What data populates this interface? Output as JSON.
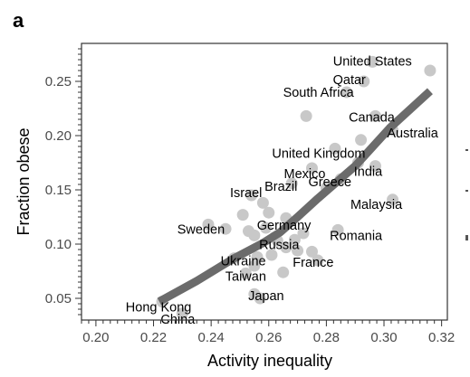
{
  "panel_letter": "a",
  "chart_data": {
    "type": "scatter",
    "xlabel": "Activity inequality",
    "ylabel": "Fraction obese",
    "xlim": [
      0.195,
      0.322
    ],
    "ylim": [
      0.03,
      0.285
    ],
    "xticks": [
      "0.20",
      "0.22",
      "0.24",
      "0.26",
      "0.28",
      "0.30",
      "0.32"
    ],
    "yticks": [
      "0.05",
      "0.10",
      "0.15",
      "0.20",
      "0.25"
    ],
    "grid": false,
    "point_color": "#c8c8c8",
    "trend_color": "#6b6b6b",
    "points": [
      {
        "x": 0.296,
        "y": 0.268,
        "label": "United States"
      },
      {
        "x": 0.316,
        "y": 0.26
      },
      {
        "x": 0.293,
        "y": 0.25,
        "label": "Qatar"
      },
      {
        "x": 0.287,
        "y": 0.24,
        "label": "South Africa"
      },
      {
        "x": 0.273,
        "y": 0.218
      },
      {
        "x": 0.297,
        "y": 0.218,
        "label": "Canada"
      },
      {
        "x": 0.303,
        "y": 0.205,
        "label": "Australia"
      },
      {
        "x": 0.292,
        "y": 0.196
      },
      {
        "x": 0.283,
        "y": 0.188,
        "label": "United Kingdom"
      },
      {
        "x": 0.291,
        "y": 0.175
      },
      {
        "x": 0.297,
        "y": 0.172,
        "label": "India"
      },
      {
        "x": 0.275,
        "y": 0.17,
        "label": "Mexico"
      },
      {
        "x": 0.285,
        "y": 0.16,
        "label": "Greece"
      },
      {
        "x": 0.268,
        "y": 0.156,
        "label": "Brazil"
      },
      {
        "x": 0.28,
        "y": 0.152
      },
      {
        "x": 0.303,
        "y": 0.141,
        "label": "Malaysia"
      },
      {
        "x": 0.254,
        "y": 0.145,
        "label": "Israel"
      },
      {
        "x": 0.258,
        "y": 0.138
      },
      {
        "x": 0.251,
        "y": 0.127
      },
      {
        "x": 0.26,
        "y": 0.129
      },
      {
        "x": 0.266,
        "y": 0.124
      },
      {
        "x": 0.239,
        "y": 0.118,
        "label": "Sweden"
      },
      {
        "x": 0.245,
        "y": 0.114
      },
      {
        "x": 0.253,
        "y": 0.112
      },
      {
        "x": 0.259,
        "y": 0.115,
        "label": "Germany"
      },
      {
        "x": 0.255,
        "y": 0.108
      },
      {
        "x": 0.262,
        "y": 0.106
      },
      {
        "x": 0.269,
        "y": 0.104
      },
      {
        "x": 0.272,
        "y": 0.11
      },
      {
        "x": 0.284,
        "y": 0.113,
        "label": "Romania"
      },
      {
        "x": 0.263,
        "y": 0.103,
        "label": "Russia"
      },
      {
        "x": 0.266,
        "y": 0.097
      },
      {
        "x": 0.27,
        "y": 0.094
      },
      {
        "x": 0.275,
        "y": 0.093
      },
      {
        "x": 0.261,
        "y": 0.09
      },
      {
        "x": 0.256,
        "y": 0.088
      },
      {
        "x": 0.277,
        "y": 0.085,
        "label": "France"
      },
      {
        "x": 0.248,
        "y": 0.087,
        "label": "Ukraine"
      },
      {
        "x": 0.255,
        "y": 0.08
      },
      {
        "x": 0.265,
        "y": 0.074
      },
      {
        "x": 0.252,
        "y": 0.073,
        "label": "Taiwan"
      },
      {
        "x": 0.255,
        "y": 0.054,
        "label": "Japan"
      },
      {
        "x": 0.257,
        "y": 0.05
      },
      {
        "x": 0.223,
        "y": 0.047,
        "label": "Hong Kong"
      },
      {
        "x": 0.23,
        "y": 0.036,
        "label": "China"
      }
    ],
    "trend": [
      {
        "x": 0.222,
        "y": 0.047
      },
      {
        "x": 0.235,
        "y": 0.066
      },
      {
        "x": 0.248,
        "y": 0.087
      },
      {
        "x": 0.258,
        "y": 0.101
      },
      {
        "x": 0.264,
        "y": 0.111
      },
      {
        "x": 0.27,
        "y": 0.125
      },
      {
        "x": 0.277,
        "y": 0.142
      },
      {
        "x": 0.29,
        "y": 0.172
      },
      {
        "x": 0.302,
        "y": 0.207
      },
      {
        "x": 0.316,
        "y": 0.241
      }
    ]
  }
}
